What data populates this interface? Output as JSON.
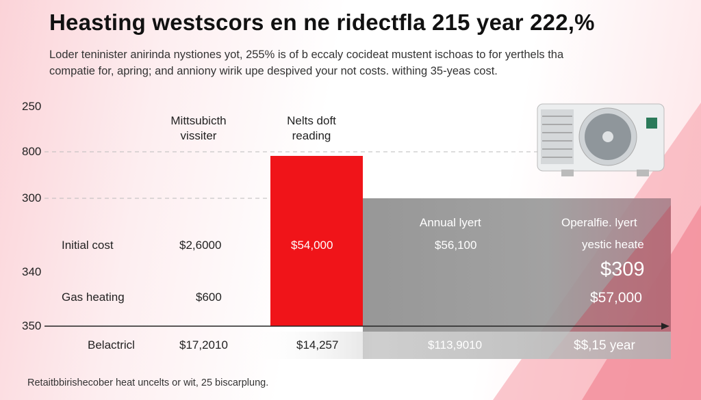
{
  "header": {
    "title": "Heasting westscors en ne ridectfla 215 year 222,%",
    "subtitle": [
      "Loder teninister anirinda nystiones yot, 255% is of b eccaly cocideat mustent ischoas to for yerthels tha",
      "compatie for, apring; and anniony wirik upe despived your not costs. withing 35-yeas cost."
    ]
  },
  "axis_labels": [
    "250",
    "800",
    "300",
    "340",
    "350"
  ],
  "headers": [
    [
      "Mittsubicth",
      "vissiter"
    ],
    [
      "Nelts doft",
      "reading"
    ],
    "Annual lyert",
    "Operalfie. lyert",
    "yestic heate"
  ],
  "rows": [
    [
      "Initial cost",
      "$2,6000",
      "$54,000",
      "$56,100",
      "$309"
    ],
    [
      "Gas heating",
      "$600",
      "$57,000"
    ],
    [
      "Belactricl",
      "$17,2010",
      "$14,257",
      "$113,9010",
      "$$,15 year"
    ]
  ],
  "footer": "Retaitbbirishecober heat uncelts or wit, 25 biscarplung."
}
